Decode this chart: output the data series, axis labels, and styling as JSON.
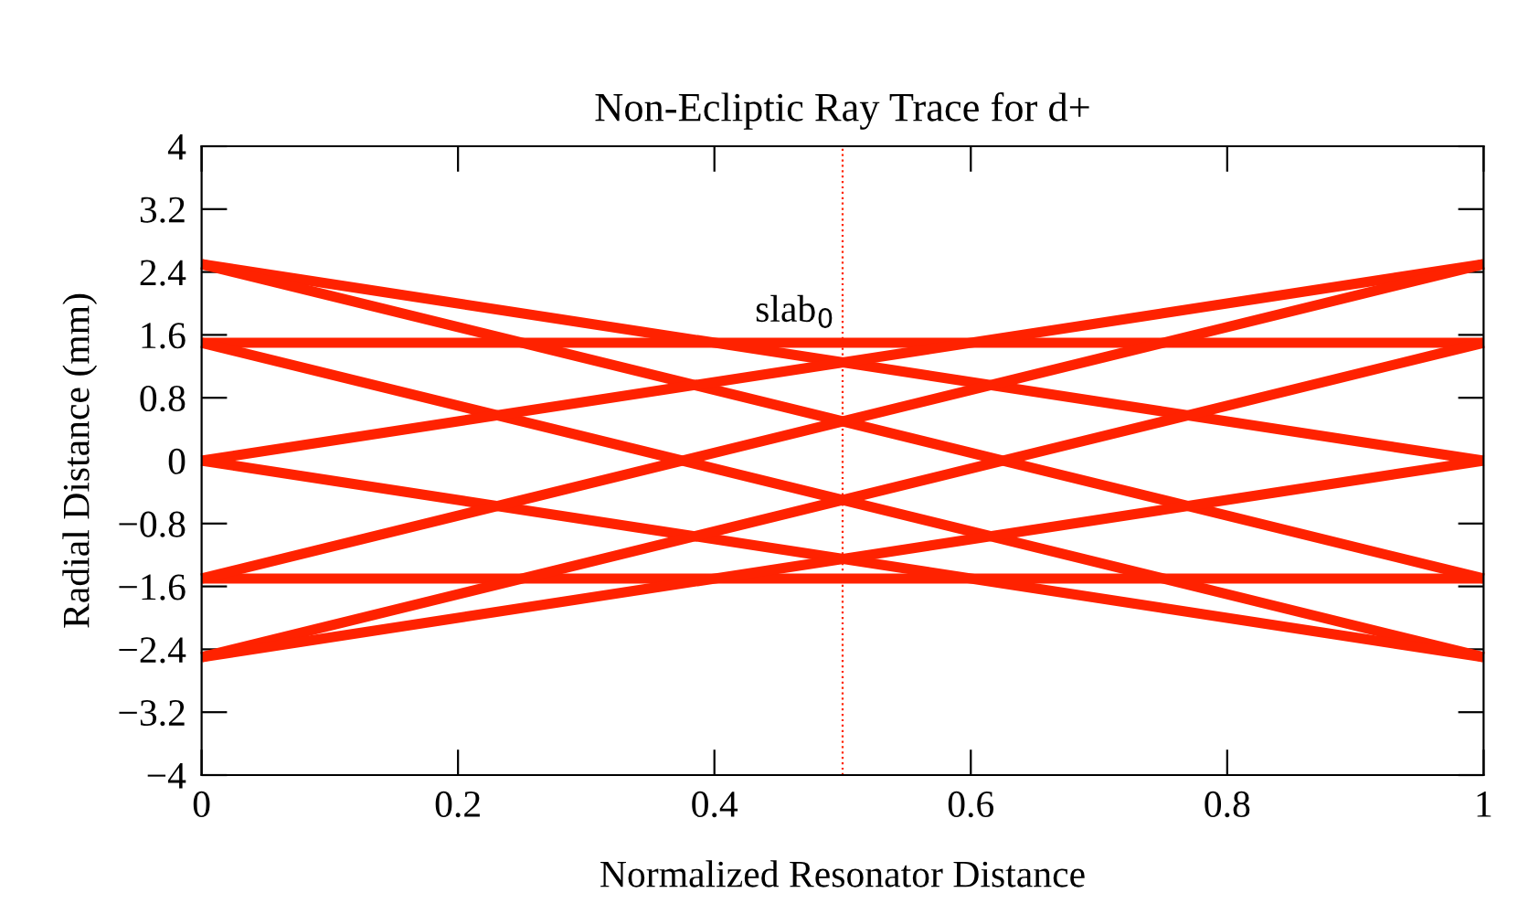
{
  "chart_data": {
    "type": "line",
    "title": "Non-Ecliptic Ray Trace for d+",
    "xlabel": "Normalized Resonator Distance",
    "ylabel": "Radial Distance (mm)",
    "x": [
      0,
      1
    ],
    "series": [
      {
        "values": [
          2.5,
          0
        ],
        "color": "#ff2200"
      },
      {
        "values": [
          2.5,
          -1.5
        ],
        "color": "#ff2200"
      },
      {
        "values": [
          1.5,
          1.5
        ],
        "color": "#ff2200"
      },
      {
        "values": [
          1.5,
          -2.5
        ],
        "color": "#ff2200"
      },
      {
        "values": [
          0,
          2.5
        ],
        "color": "#ff2200"
      },
      {
        "values": [
          0,
          -2.5
        ],
        "color": "#ff2200"
      },
      {
        "values": [
          -1.5,
          -1.5
        ],
        "color": "#ff2200"
      },
      {
        "values": [
          -1.5,
          2.5
        ],
        "color": "#ff2200"
      },
      {
        "values": [
          -2.5,
          1.5
        ],
        "color": "#ff2200"
      },
      {
        "values": [
          -2.5,
          0
        ],
        "color": "#ff2200"
      }
    ],
    "ref_lines": [
      {
        "axis": "x",
        "value": 0.5,
        "label": "slab$_{0}$",
        "color": "#ff2200",
        "line_style": "dotted"
      }
    ],
    "xlim": [
      0,
      1
    ],
    "xticks": [
      0,
      0.2,
      0.4,
      0.6,
      0.8,
      1
    ],
    "ylim": [
      -4,
      4
    ],
    "yticks": [
      -4,
      -3.2,
      -2.4,
      -1.6,
      -0.8,
      0,
      0.8,
      1.6,
      2.4,
      3.2,
      4
    ],
    "grid": false,
    "legend": false,
    "marker": "none",
    "line_style": "solid"
  }
}
